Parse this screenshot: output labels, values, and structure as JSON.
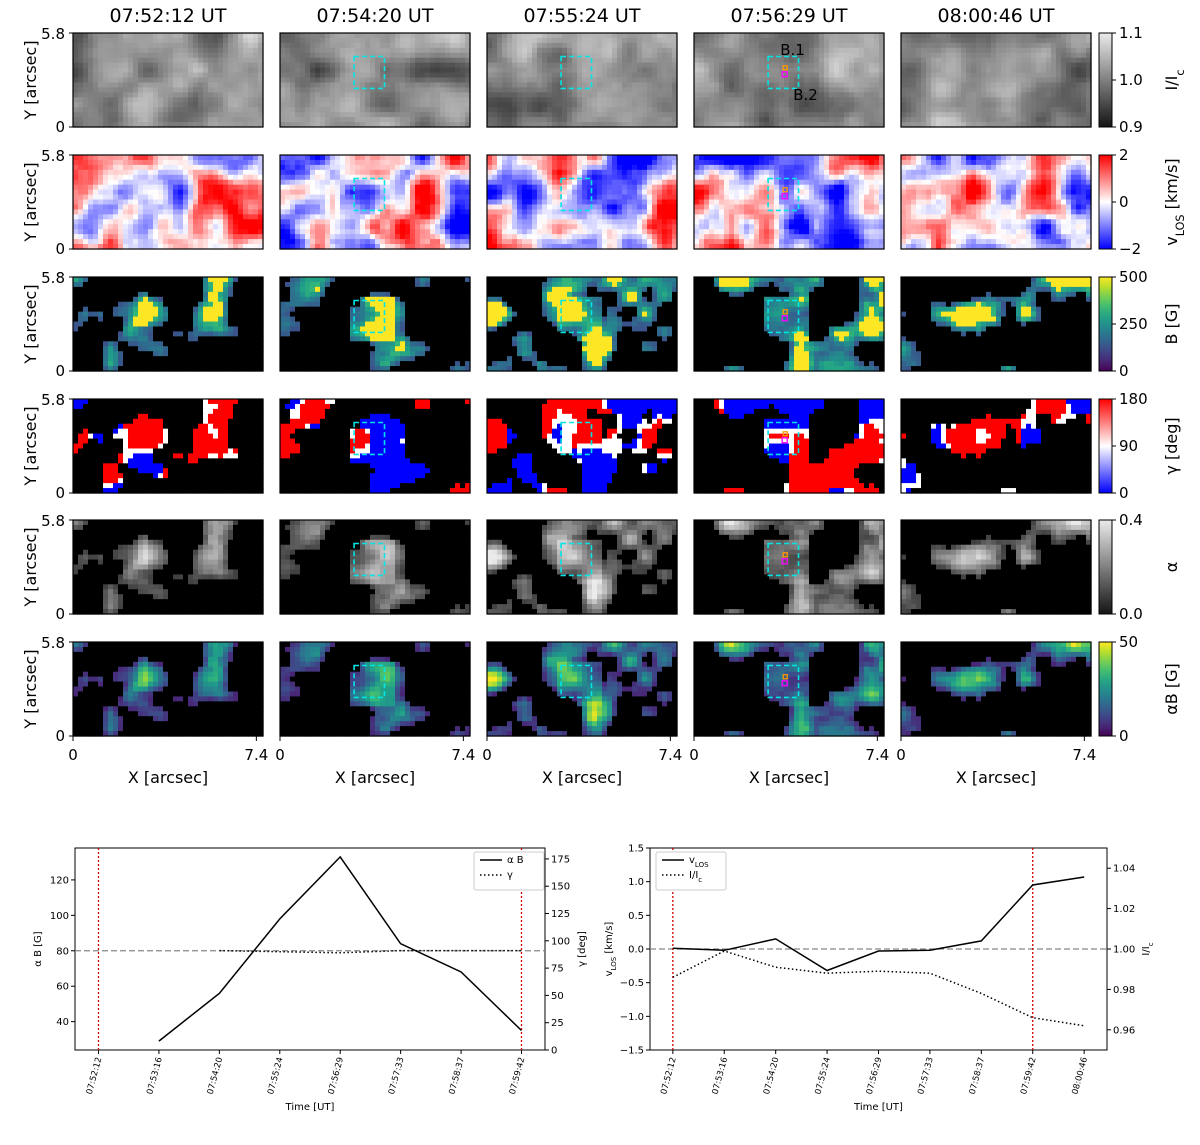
{
  "figure": {
    "column_titles": [
      "07:52:12 UT",
      "07:54:20 UT",
      "07:55:24 UT",
      "07:56:29 UT",
      "08:00:46 UT"
    ],
    "y_label": "Y [arcsec]",
    "x_label": "X [arcsec]",
    "y_ticks": [
      "0",
      "5.8"
    ],
    "x_ticks": [
      "0",
      "7.4"
    ],
    "point_labels": [
      "B.1",
      "B.2"
    ],
    "rows": [
      {
        "name": "intensity",
        "cmap": "gray",
        "colorbar_label": "I/I",
        "colorbar_sub": "c",
        "ticks": [
          "0.9",
          "1.0",
          "1.1"
        ]
      },
      {
        "name": "vlos",
        "cmap": "bwr",
        "colorbar_label": "v",
        "colorbar_sub": "LOS",
        "colorbar_suffix": " [km/s]",
        "ticks": [
          "−2",
          "0",
          "2"
        ]
      },
      {
        "name": "field-strength",
        "cmap": "viridis",
        "colorbar_label": "B [G]",
        "ticks": [
          "0",
          "250",
          "500"
        ]
      },
      {
        "name": "inclination",
        "cmap": "bwr",
        "colorbar_label": "γ [deg]",
        "ticks": [
          "0",
          "90",
          "180"
        ]
      },
      {
        "name": "filling-factor",
        "cmap": "gray",
        "colorbar_label": "α",
        "ticks": [
          "0.0",
          "0.4"
        ]
      },
      {
        "name": "magnetic-flux-density",
        "cmap": "viridis",
        "colorbar_label": "αB [G]",
        "ticks": [
          "0",
          "50"
        ]
      }
    ],
    "colors": {
      "box": "#00e5e5",
      "b1": "#ff9900",
      "b2": "#ff00ff",
      "threshold": "#cc0000"
    }
  },
  "chart_data": [
    {
      "type": "line",
      "x": [
        "07:52:12",
        "07:53:16",
        "07:54:20",
        "07:55:24",
        "07:56:29",
        "07:57:33",
        "07:58:37",
        "07:59:42"
      ],
      "xlabel": "Time [UT]",
      "ylabel": "α B [G]",
      "ylabel2": "γ [deg]",
      "ylim": [
        24,
        138
      ],
      "ylim2": [
        0,
        185
      ],
      "yticks": [
        40,
        60,
        80,
        100,
        120
      ],
      "yticks2": [
        0,
        25,
        50,
        75,
        100,
        125,
        150,
        175
      ],
      "series": [
        {
          "name": "α B",
          "axis": "left",
          "style": "solid",
          "values": [
            null,
            29,
            56,
            98,
            133,
            84,
            68,
            35
          ]
        },
        {
          "name": "γ",
          "axis": "right",
          "style": "dotted",
          "values": [
            null,
            null,
            91,
            90,
            89,
            91,
            91,
            91
          ]
        }
      ],
      "hline": 80,
      "vlines": [
        "07:52:12",
        "07:59:42"
      ]
    },
    {
      "type": "line",
      "x": [
        "07:52:12",
        "07:53:16",
        "07:54:20",
        "07:55:24",
        "07:56:29",
        "07:57:33",
        "07:58:37",
        "07:59:42",
        "08:00:46"
      ],
      "xlabel": "Time [UT]",
      "ylabel": "v",
      "ylabel_sub": "LOS",
      "ylabel_suffix": " [km/s]",
      "ylabel2": "I/I",
      "ylabel2_sub": "c",
      "ylim": [
        -1.5,
        1.5
      ],
      "ylim2": [
        0.95,
        1.05
      ],
      "yticks": [
        "−1.5",
        "−1.0",
        "−0.5",
        "0.0",
        "0.5",
        "1.0",
        "1.5"
      ],
      "yticks2": [
        "0.96",
        "0.98",
        "1.00",
        "1.02",
        "1.04"
      ],
      "series": [
        {
          "name": "v",
          "name_sub": "LOS",
          "axis": "left",
          "style": "solid",
          "values": [
            0.01,
            -0.02,
            0.15,
            -0.32,
            -0.03,
            -0.02,
            0.12,
            0.95,
            1.07
          ]
        },
        {
          "name": "I/I",
          "name_sub": "c",
          "axis": "right",
          "style": "dotted",
          "values": [
            0.986,
            0.999,
            0.991,
            0.988,
            0.989,
            0.988,
            0.978,
            0.966,
            0.962
          ]
        }
      ],
      "hline": 0,
      "vlines": [
        "07:52:12",
        "07:59:42"
      ]
    }
  ]
}
